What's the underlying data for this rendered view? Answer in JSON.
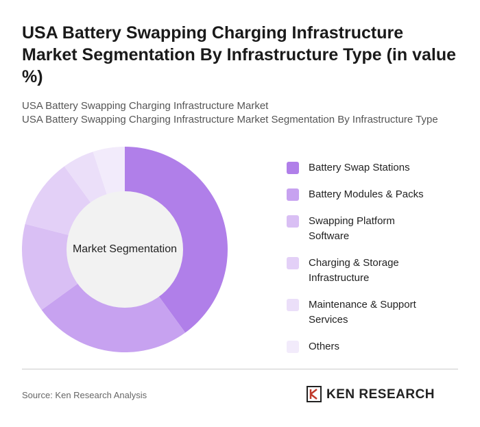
{
  "chart_data": {
    "type": "donut",
    "title": "USA Battery Swapping Charging Infrastructure Market Segmentation By Infrastructure Type (in value %)",
    "subtitle": [
      "USA Battery Swapping Charging Infrastructure Market",
      "USA Battery Swapping Charging Infrastructure Market Segmentation By Infrastructure Type"
    ],
    "center_label": "Market Segmentation",
    "categories": [
      "Battery Swap Stations",
      "Battery Modules & Packs",
      "Swapping Platform Software",
      "Charging & Storage Infrastructure",
      "Maintenance & Support Services",
      "Others"
    ],
    "values": [
      40,
      25,
      14,
      11,
      5,
      5
    ],
    "colors": [
      "#b07fe9",
      "#c7a2f0",
      "#d9bff4",
      "#e3d0f7",
      "#ebdff9",
      "#f2ebfb"
    ]
  },
  "footer": {
    "source": "Source: Ken Research Analysis",
    "brand": "KEN RESEARCH"
  }
}
